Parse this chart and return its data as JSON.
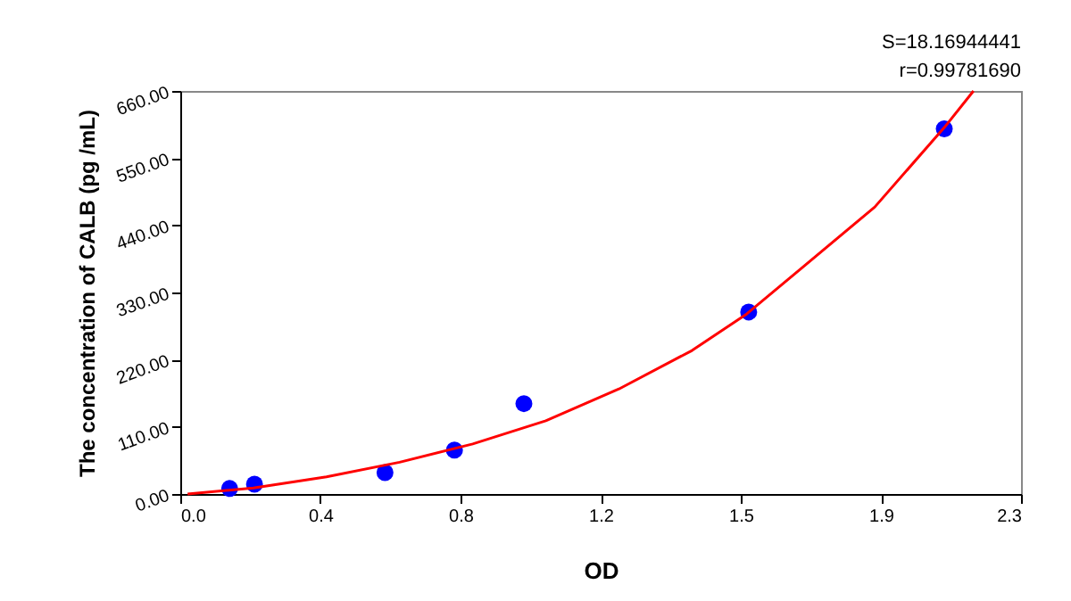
{
  "chart_data": {
    "type": "scatter",
    "xlabel": "OD",
    "ylabel": "The concentration of  CALB (pg /mL)",
    "annotations": [
      "S=18.16944441",
      "r=0.99781690"
    ],
    "series": [
      {
        "color": "#0000ff",
        "marker": "circle",
        "x": [
          0.135,
          0.203,
          0.56,
          0.75,
          0.94,
          1.555,
          2.09
        ],
        "values": [
          9,
          16,
          35,
          72,
          148,
          298,
          598
        ]
      },
      {
        "type": "line",
        "color": "#ff0000",
        "line_style": "solid",
        "x": [
          0.02,
          0.2,
          0.4,
          0.6,
          0.8,
          1.0,
          1.2,
          1.4,
          1.55,
          1.7,
          1.9,
          2.09,
          2.17
        ],
        "values": [
          0,
          10,
          28,
          52,
          82,
          120,
          172,
          235,
          295,
          370,
          470,
          600,
          660
        ]
      }
    ],
    "xlim": [
      0,
      2.3
    ],
    "xticks": [
      {
        "value": 0,
        "label": "0.0"
      },
      {
        "value": 0.3833,
        "label": "0.4"
      },
      {
        "value": 0.7667,
        "label": "0.8"
      },
      {
        "value": 1.15,
        "label": "1.2"
      },
      {
        "value": 1.5333,
        "label": "1.5"
      },
      {
        "value": 1.9167,
        "label": "1.9"
      },
      {
        "value": 2.3,
        "label": "2.3"
      }
    ],
    "ylim": [
      0,
      660
    ],
    "yticks": [
      {
        "value": 0,
        "label": "0.00"
      },
      {
        "value": 110,
        "label": "110.00"
      },
      {
        "value": 220,
        "label": "220.00"
      },
      {
        "value": 330,
        "label": "330.00"
      },
      {
        "value": 440,
        "label": "440.00"
      },
      {
        "value": 550,
        "label": "550.00"
      },
      {
        "value": 660,
        "label": "660.00"
      }
    ],
    "grid": false
  }
}
